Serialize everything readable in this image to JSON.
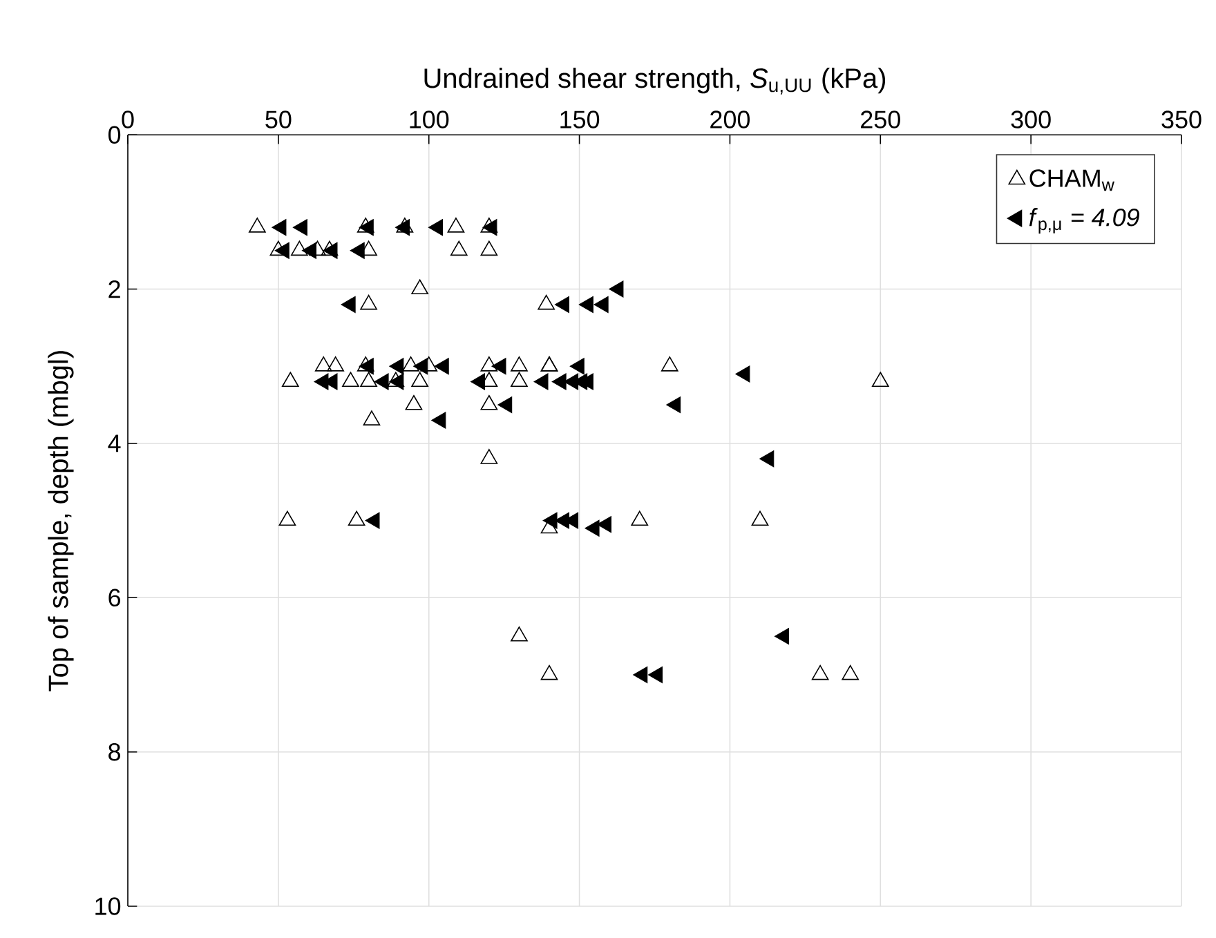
{
  "chart_data": {
    "type": "scatter",
    "xlabel": "Undrained shear strength, *S*$_{u,UU}$ (kPa)",
    "ylabel": "Top of sample, depth (mbgl)",
    "xlim": [
      0,
      350
    ],
    "xticks": [
      0,
      50,
      100,
      150,
      200,
      250,
      300,
      350
    ],
    "ylim": [
      10,
      0
    ],
    "yticks": [
      0,
      2,
      4,
      6,
      8,
      10
    ],
    "grid": true,
    "legend": "top right",
    "marker": "triangle",
    "series": [
      {
        "name": "CHAM$_{w}$",
        "color": "#000000",
        "x": [
          43,
          79,
          92,
          109,
          120,
          50,
          57,
          63,
          67,
          80,
          110,
          120,
          97,
          80,
          139,
          140,
          120,
          130,
          140,
          180,
          65,
          69,
          79,
          94,
          100,
          54,
          74,
          80,
          89,
          97,
          120,
          130,
          250,
          95,
          120,
          81,
          120,
          53,
          76,
          140,
          170,
          210,
          130,
          140,
          230,
          240
        ],
        "values": [
          1.2,
          1.2,
          1.2,
          1.2,
          1.2,
          1.5,
          1.5,
          1.5,
          1.5,
          1.5,
          1.5,
          1.5,
          2.0,
          2.2,
          2.2,
          3.0,
          3.0,
          3.0,
          3.0,
          3.0,
          3.0,
          3.0,
          3.0,
          3.0,
          3.0,
          3.2,
          3.2,
          3.2,
          3.2,
          3.2,
          3.2,
          3.2,
          3.2,
          3.5,
          3.5,
          3.7,
          4.2,
          5.0,
          5.0,
          5.1,
          5.0,
          5.0,
          6.5,
          7.0,
          7.0,
          7.0
        ]
      },
      {
        "name": "*f*$_{p,μ}$ *= 4.09*",
        "color": "#000000",
        "x": [
          51,
          58,
          80,
          92,
          103,
          121,
          52,
          61,
          68,
          77,
          74,
          145,
          153,
          158,
          163,
          80,
          90,
          98,
          105,
          124,
          150,
          205,
          65,
          68,
          85,
          90,
          117,
          138,
          144,
          148,
          151,
          153,
          126,
          182,
          104,
          213,
          82,
          141,
          145,
          148,
          155,
          159,
          218,
          171,
          176
        ],
        "values": [
          1.2,
          1.2,
          1.2,
          1.2,
          1.2,
          1.2,
          1.5,
          1.5,
          1.5,
          1.5,
          2.2,
          2.2,
          2.2,
          2.2,
          2.0,
          3.0,
          3.0,
          3.0,
          3.0,
          3.0,
          3.0,
          3.1,
          3.2,
          3.2,
          3.2,
          3.2,
          3.2,
          3.2,
          3.2,
          3.2,
          3.2,
          3.2,
          3.5,
          3.5,
          3.7,
          4.2,
          5.0,
          5.0,
          5.0,
          5.0,
          5.1,
          5.05,
          6.5,
          7.0,
          7.0
        ]
      }
    ]
  }
}
